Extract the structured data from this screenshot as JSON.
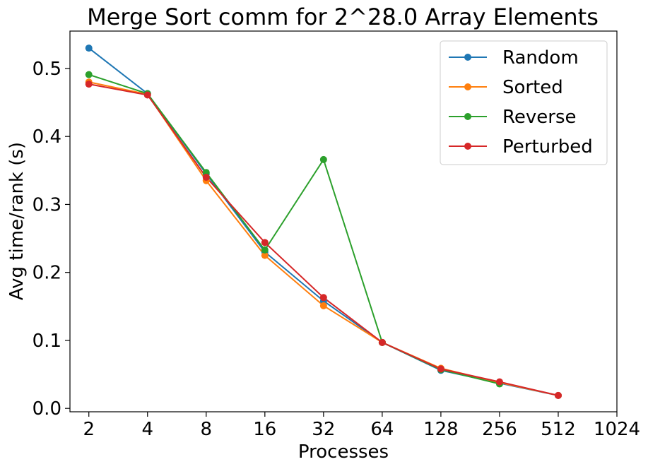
{
  "chart_data": {
    "type": "line",
    "title": "Merge Sort comm for 2^28.0 Array Elements",
    "xlabel": "Processes",
    "ylabel": "Avg time/rank (s)",
    "x_scale": "log2",
    "x_ticks": [
      "2",
      "4",
      "8",
      "16",
      "32",
      "64",
      "128",
      "256",
      "512",
      "1024"
    ],
    "x_tick_values": [
      2,
      4,
      8,
      16,
      32,
      64,
      128,
      256,
      512,
      1024
    ],
    "y_ticks": [
      "0.0",
      "0.1",
      "0.2",
      "0.3",
      "0.4",
      "0.5"
    ],
    "y_tick_values": [
      0,
      0.1,
      0.2,
      0.3,
      0.4,
      0.5
    ],
    "xlim": [
      1.6,
      1024
    ],
    "ylim": [
      -0.005,
      0.555
    ],
    "legend_position": "top-right",
    "series": [
      {
        "name": "Random",
        "color": "#1f77b4",
        "x": [
          2,
          4,
          8,
          16,
          32,
          64,
          128,
          256,
          512
        ],
        "y": [
          0.53,
          0.463,
          0.345,
          0.23,
          0.158,
          0.097,
          0.056,
          0.037,
          0.019
        ]
      },
      {
        "name": "Sorted",
        "color": "#ff7f0e",
        "x": [
          2,
          4,
          8,
          16,
          32,
          64,
          128,
          256,
          512
        ],
        "y": [
          0.48,
          0.462,
          0.335,
          0.225,
          0.151,
          0.097,
          0.059,
          0.038,
          0.019
        ]
      },
      {
        "name": "Reverse",
        "color": "#2ca02c",
        "x": [
          2,
          4,
          8,
          16,
          32,
          64,
          128,
          256
        ],
        "y": [
          0.491,
          0.463,
          0.347,
          0.233,
          0.366,
          0.097,
          0.057,
          0.036
        ]
      },
      {
        "name": "Perturbed",
        "color": "#d62728",
        "x": [
          2,
          4,
          8,
          16,
          32,
          64,
          128,
          256,
          512
        ],
        "y": [
          0.477,
          0.461,
          0.34,
          0.244,
          0.163,
          0.097,
          0.058,
          0.039,
          0.019
        ]
      }
    ]
  }
}
